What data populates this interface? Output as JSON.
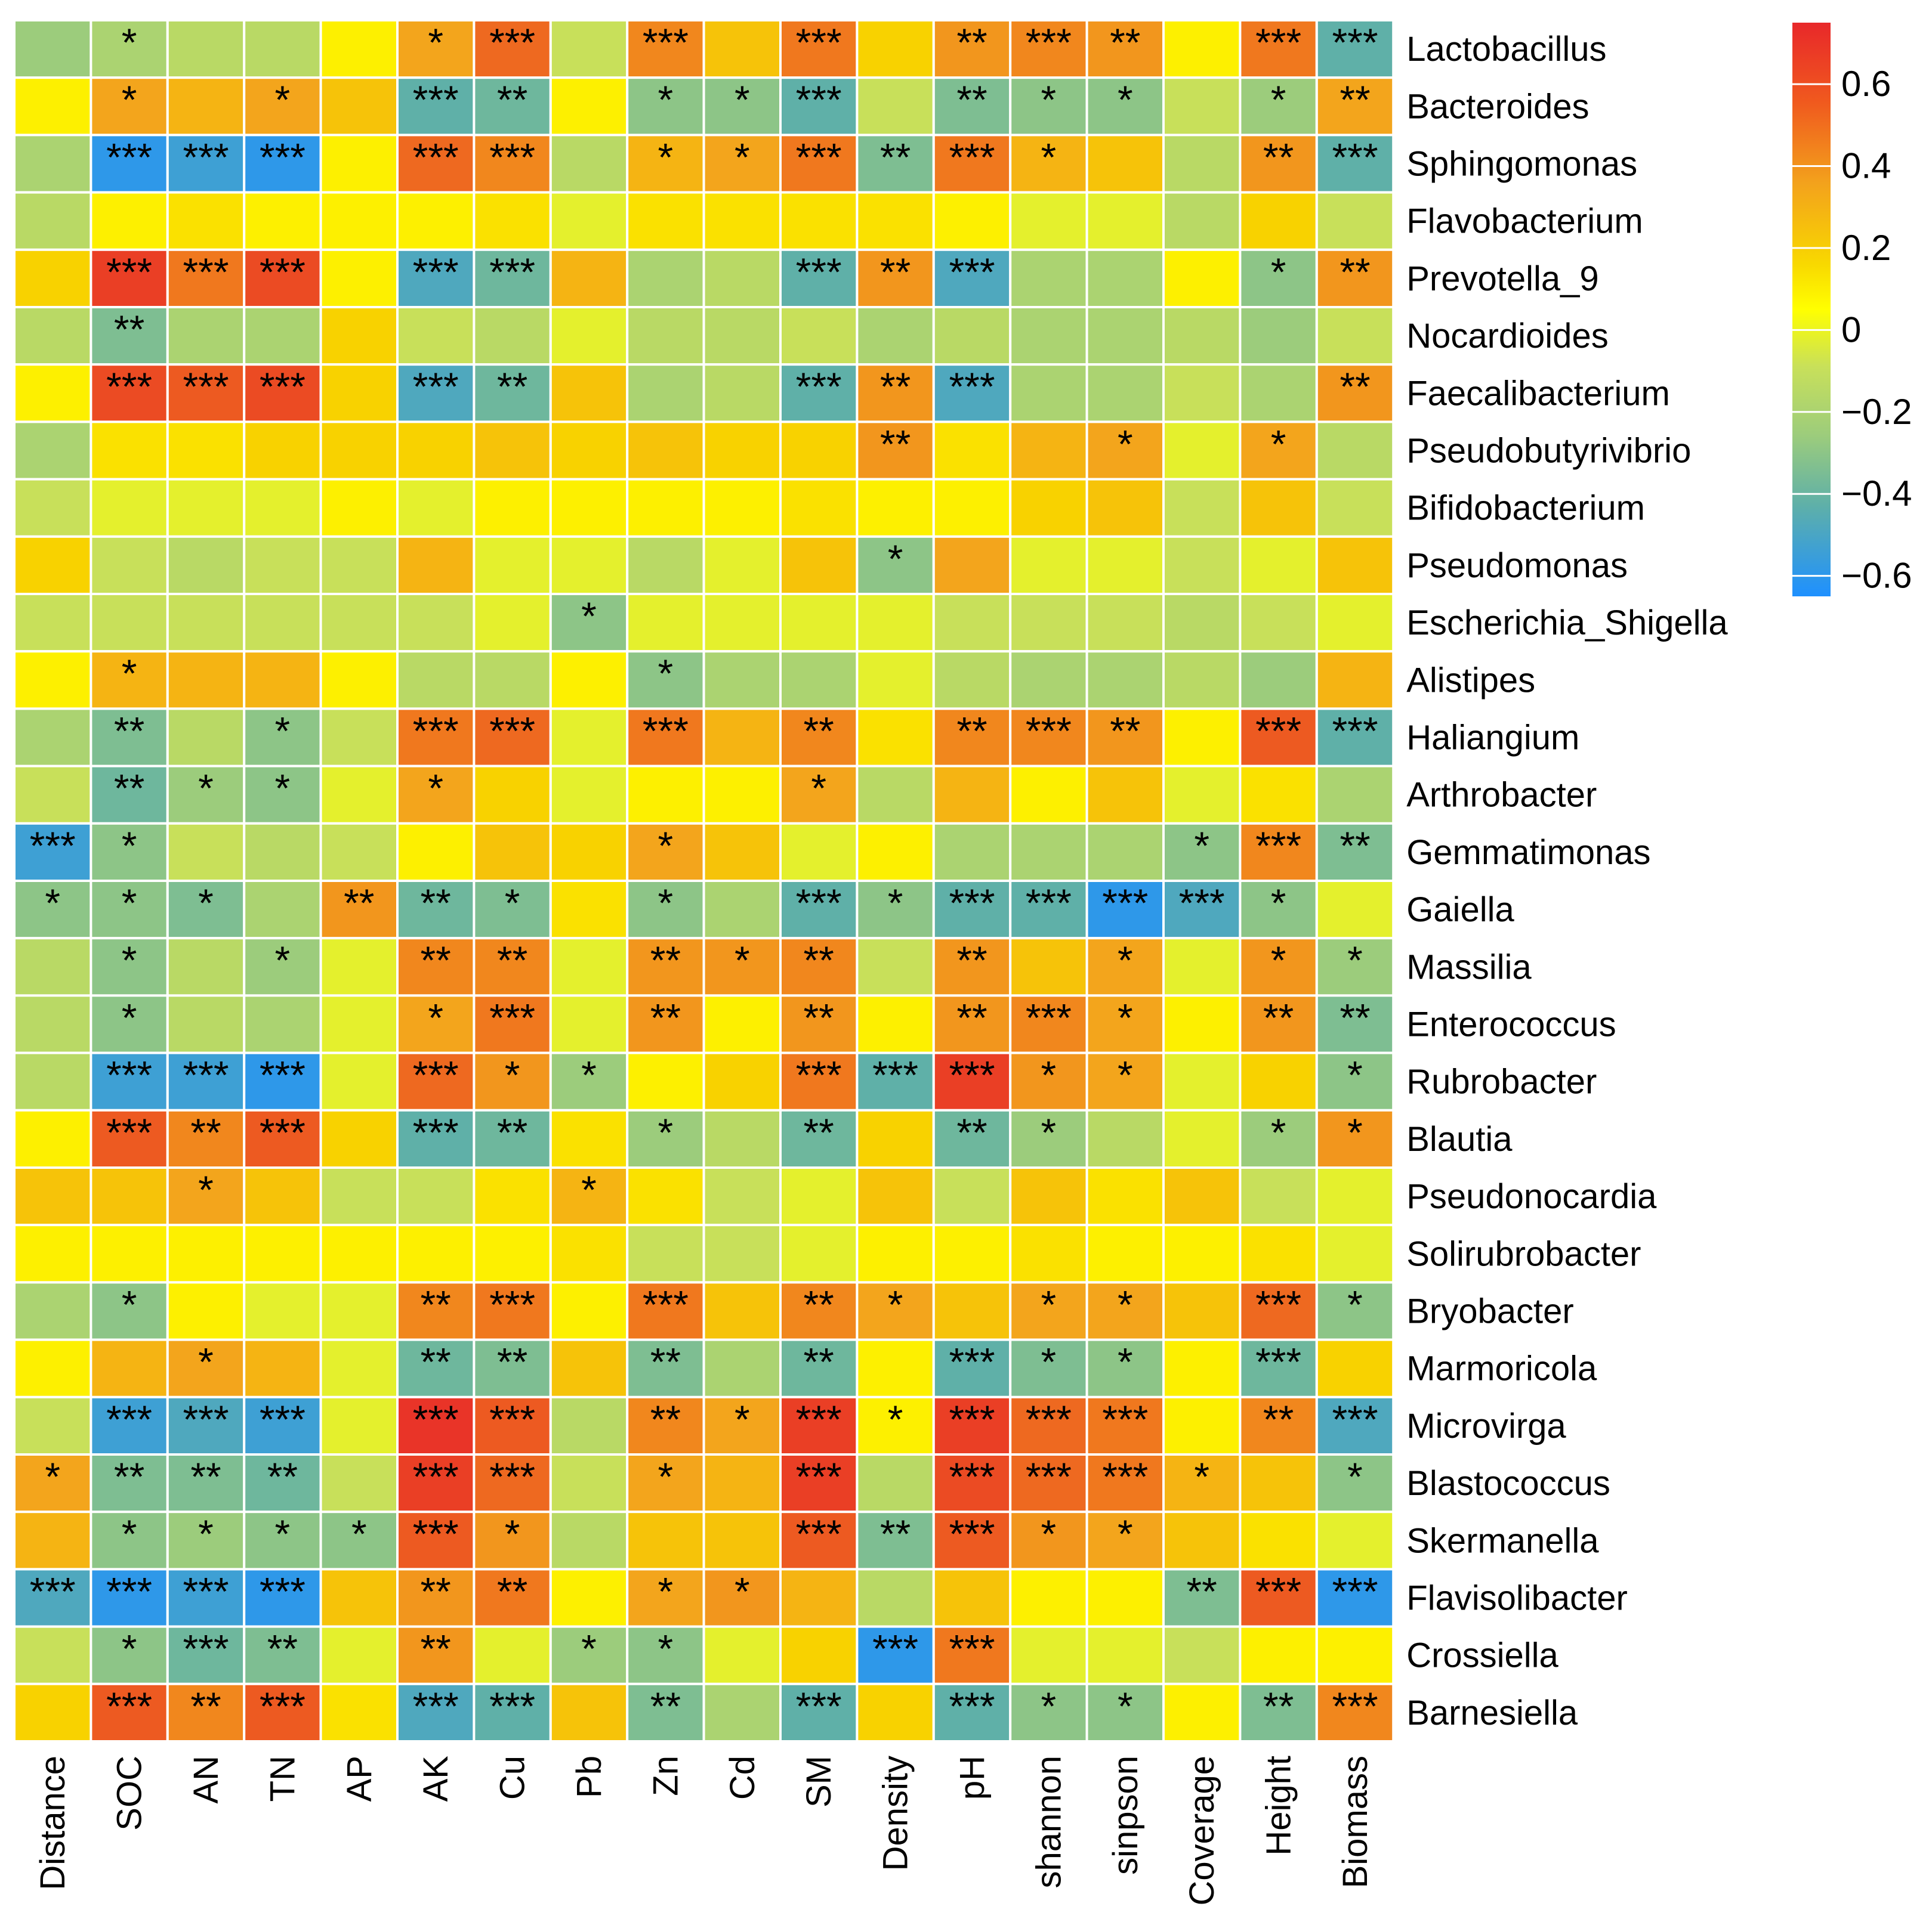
{
  "chart_data": {
    "type": "heatmap",
    "title": "",
    "columns": [
      "Distance",
      "SOC",
      "AN",
      "TN",
      "AP",
      "AK",
      "Cu",
      "Pb",
      "Zn",
      "Cd",
      "SM",
      "Density",
      "pH",
      "shannon",
      "sinpson",
      "Coverage",
      "Height",
      "Biomass"
    ],
    "rows": [
      "Lactobacillus",
      "Bacteroides",
      "Sphingomonas",
      "Flavobacterium",
      "Prevotella_9",
      "Nocardioides",
      "Faecalibacterium",
      "Pseudobutyrivibrio",
      "Bifidobacterium",
      "Pseudomonas",
      "Escherichia_Shigella",
      "Alistipes",
      "Haliangium",
      "Arthrobacter",
      "Gemmatimonas",
      "Gaiella",
      "Massilia",
      "Enterococcus",
      "Rubrobacter",
      "Blautia",
      "Pseudonocardia",
      "Solirubrobacter",
      "Bryobacter",
      "Marmoricola",
      "Microvirga",
      "Blastococcus",
      "Skermanella",
      "Flavisolibacter",
      "Crossiella",
      "Barnesiella"
    ],
    "values": [
      [
        -0.25,
        -0.2,
        -0.15,
        -0.15,
        0.05,
        0.3,
        0.5,
        -0.1,
        0.4,
        0.2,
        0.45,
        0.15,
        0.35,
        0.4,
        0.35,
        0.05,
        0.45,
        -0.45
      ],
      [
        0.05,
        0.3,
        0.25,
        0.3,
        0.2,
        -0.45,
        -0.4,
        0.05,
        -0.3,
        -0.3,
        -0.45,
        -0.1,
        -0.35,
        -0.3,
        -0.3,
        -0.1,
        -0.25,
        0.3
      ],
      [
        -0.2,
        -0.6,
        -0.55,
        -0.6,
        0.05,
        0.5,
        0.4,
        -0.15,
        0.25,
        0.3,
        0.45,
        -0.35,
        0.45,
        0.25,
        0.2,
        -0.15,
        0.35,
        -0.45
      ],
      [
        -0.15,
        0.05,
        0.1,
        0.05,
        0.05,
        0.05,
        0.1,
        -0.05,
        0.1,
        0.1,
        0.1,
        0.1,
        0.05,
        -0.05,
        -0.05,
        -0.15,
        0.15,
        -0.1
      ],
      [
        0.15,
        0.65,
        0.45,
        0.6,
        0.05,
        -0.5,
        -0.4,
        0.25,
        -0.2,
        -0.15,
        -0.45,
        0.35,
        -0.5,
        -0.2,
        -0.2,
        0.05,
        -0.3,
        0.35
      ],
      [
        -0.15,
        -0.35,
        -0.2,
        -0.2,
        0.15,
        -0.1,
        -0.15,
        -0.05,
        -0.15,
        -0.15,
        -0.1,
        -0.2,
        -0.15,
        -0.2,
        -0.2,
        -0.15,
        -0.25,
        -0.1
      ],
      [
        0.05,
        0.6,
        0.55,
        0.6,
        0.15,
        -0.5,
        -0.4,
        0.2,
        -0.2,
        -0.15,
        -0.45,
        0.35,
        -0.5,
        -0.2,
        -0.2,
        -0.1,
        -0.2,
        0.35
      ],
      [
        -0.2,
        0.1,
        0.1,
        0.15,
        0.15,
        0.15,
        0.2,
        0.15,
        0.2,
        0.15,
        0.15,
        0.35,
        0.1,
        0.25,
        0.3,
        -0.05,
        0.3,
        -0.15
      ],
      [
        -0.1,
        -0.05,
        -0.05,
        -0.05,
        0.05,
        -0.05,
        0.05,
        0.05,
        0.05,
        0.05,
        0.1,
        0.05,
        0.05,
        0.15,
        0.2,
        -0.1,
        0.2,
        -0.1
      ],
      [
        0.15,
        -0.1,
        -0.15,
        -0.1,
        -0.1,
        0.25,
        -0.05,
        -0.05,
        -0.15,
        -0.05,
        0.2,
        -0.3,
        0.3,
        -0.05,
        -0.05,
        -0.1,
        -0.05,
        0.2
      ],
      [
        -0.1,
        -0.1,
        -0.1,
        -0.1,
        -0.1,
        -0.1,
        -0.05,
        -0.3,
        -0.05,
        -0.05,
        -0.05,
        -0.05,
        -0.1,
        -0.1,
        -0.1,
        -0.15,
        -0.1,
        -0.05
      ],
      [
        0.05,
        0.25,
        0.25,
        0.25,
        0.05,
        -0.15,
        -0.15,
        0.05,
        -0.3,
        -0.2,
        -0.2,
        -0.05,
        -0.15,
        -0.2,
        -0.2,
        -0.15,
        -0.25,
        0.25
      ],
      [
        -0.2,
        -0.35,
        -0.15,
        -0.3,
        -0.1,
        0.45,
        0.5,
        -0.05,
        0.45,
        0.25,
        0.4,
        0.1,
        0.4,
        0.4,
        0.35,
        0.05,
        0.55,
        -0.45
      ],
      [
        -0.1,
        -0.4,
        -0.25,
        -0.3,
        -0.05,
        0.3,
        0.15,
        -0.05,
        0.05,
        0.05,
        0.3,
        -0.15,
        0.25,
        0.05,
        0.2,
        -0.05,
        0.1,
        -0.2
      ],
      [
        -0.55,
        -0.3,
        -0.1,
        -0.15,
        -0.1,
        0.05,
        0.2,
        0.15,
        0.3,
        0.2,
        -0.05,
        0.05,
        -0.2,
        -0.2,
        -0.2,
        -0.3,
        0.4,
        -0.35
      ],
      [
        -0.3,
        -0.3,
        -0.35,
        -0.2,
        0.35,
        -0.4,
        -0.35,
        0.1,
        -0.3,
        -0.2,
        -0.45,
        -0.3,
        -0.45,
        -0.45,
        -0.6,
        -0.5,
        -0.3,
        -0.05
      ],
      [
        -0.15,
        -0.3,
        -0.15,
        -0.25,
        -0.05,
        0.4,
        0.4,
        -0.05,
        0.35,
        0.35,
        0.4,
        -0.1,
        0.35,
        0.2,
        0.3,
        -0.05,
        0.35,
        -0.25
      ],
      [
        -0.15,
        -0.3,
        -0.15,
        -0.2,
        -0.05,
        0.3,
        0.45,
        -0.05,
        0.35,
        0.05,
        0.35,
        0.05,
        0.35,
        0.4,
        0.3,
        0.05,
        0.35,
        -0.35
      ],
      [
        -0.15,
        -0.55,
        -0.55,
        -0.6,
        -0.05,
        0.5,
        0.35,
        -0.25,
        0.05,
        0.15,
        0.45,
        -0.45,
        0.65,
        0.35,
        0.3,
        -0.05,
        0.15,
        -0.3
      ],
      [
        0.05,
        0.55,
        0.4,
        0.55,
        0.15,
        -0.45,
        -0.4,
        0.1,
        -0.25,
        -0.15,
        -0.4,
        0.15,
        -0.4,
        -0.25,
        -0.15,
        -0.05,
        -0.25,
        0.35
      ],
      [
        0.2,
        0.2,
        0.3,
        0.2,
        -0.1,
        -0.1,
        0.1,
        0.25,
        0.1,
        -0.1,
        -0.05,
        0.2,
        -0.1,
        0.2,
        0.1,
        0.2,
        -0.1,
        -0.05
      ],
      [
        0.05,
        0.05,
        0.05,
        0.05,
        0.05,
        0.05,
        0.05,
        0.1,
        -0.1,
        -0.1,
        -0.05,
        0.05,
        0.05,
        0.1,
        0.05,
        0.05,
        0.1,
        -0.05
      ],
      [
        -0.2,
        -0.3,
        0.05,
        -0.05,
        -0.05,
        0.4,
        0.45,
        0.05,
        0.45,
        0.2,
        0.4,
        0.3,
        0.2,
        0.3,
        0.3,
        0.2,
        0.5,
        -0.3
      ],
      [
        0.05,
        0.25,
        0.3,
        0.25,
        -0.05,
        -0.4,
        -0.35,
        0.2,
        -0.35,
        -0.2,
        -0.4,
        0.05,
        -0.45,
        -0.35,
        -0.3,
        0.05,
        -0.4,
        0.15
      ],
      [
        -0.1,
        -0.55,
        -0.5,
        -0.55,
        -0.05,
        0.7,
        0.55,
        -0.15,
        0.4,
        0.3,
        0.65,
        0.05,
        0.65,
        0.5,
        0.45,
        0.05,
        0.4,
        -0.5
      ],
      [
        0.3,
        -0.35,
        -0.35,
        -0.4,
        -0.1,
        0.65,
        0.5,
        -0.1,
        0.3,
        0.25,
        0.65,
        -0.15,
        0.6,
        0.5,
        0.45,
        0.25,
        0.2,
        -0.3
      ],
      [
        0.25,
        -0.3,
        -0.25,
        -0.3,
        -0.3,
        0.55,
        0.35,
        -0.15,
        0.2,
        0.2,
        0.55,
        -0.35,
        0.55,
        0.35,
        0.3,
        0.2,
        0.1,
        -0.05
      ],
      [
        -0.5,
        -0.6,
        -0.55,
        -0.6,
        0.2,
        0.35,
        0.45,
        0.05,
        0.3,
        0.35,
        0.25,
        -0.15,
        0.2,
        0.05,
        0.05,
        -0.35,
        0.55,
        -0.6
      ],
      [
        -0.1,
        -0.3,
        -0.4,
        -0.35,
        -0.05,
        0.35,
        -0.05,
        -0.25,
        -0.3,
        -0.05,
        0.15,
        -0.6,
        0.45,
        -0.05,
        -0.05,
        -0.1,
        0.05,
        0.05
      ],
      [
        0.15,
        0.55,
        0.4,
        0.55,
        0.1,
        -0.5,
        -0.45,
        0.2,
        -0.35,
        -0.2,
        -0.45,
        0.15,
        -0.45,
        -0.3,
        -0.3,
        0.05,
        -0.35,
        0.4
      ]
    ],
    "significance": [
      [
        "",
        "*",
        "",
        "",
        "",
        "*",
        "***",
        "",
        "***",
        "",
        "***",
        "",
        "**",
        "***",
        "**",
        "",
        "***",
        "***"
      ],
      [
        "",
        "*",
        "",
        "*",
        "",
        "***",
        "**",
        "",
        "*",
        "*",
        "***",
        "",
        "**",
        "*",
        "*",
        "",
        "*",
        "**"
      ],
      [
        "",
        "***",
        "***",
        "***",
        "",
        "***",
        "***",
        "",
        "*",
        "*",
        "***",
        "**",
        "***",
        "*",
        "",
        "",
        "**",
        "***"
      ],
      [
        "",
        "",
        "",
        "",
        "",
        "",
        "",
        "",
        "",
        "",
        "",
        "",
        "",
        "",
        "",
        "",
        "",
        ""
      ],
      [
        "",
        "***",
        "***",
        "***",
        "",
        "***",
        "***",
        "",
        "",
        "",
        "***",
        "**",
        "***",
        "",
        "",
        "",
        "*",
        "**"
      ],
      [
        "",
        "**",
        "",
        "",
        "",
        "",
        "",
        "",
        "",
        "",
        "",
        "",
        "",
        "",
        "",
        "",
        "",
        ""
      ],
      [
        "",
        "***",
        "***",
        "***",
        "",
        "***",
        "**",
        "",
        "",
        "",
        "***",
        "**",
        "***",
        "",
        "",
        "",
        "",
        "**"
      ],
      [
        "",
        "",
        "",
        "",
        "",
        "",
        "",
        "",
        "",
        "",
        "",
        "**",
        "",
        "",
        "*",
        "",
        "*",
        ""
      ],
      [
        "",
        "",
        "",
        "",
        "",
        "",
        "",
        "",
        "",
        "",
        "",
        "",
        "",
        "",
        "",
        "",
        "",
        ""
      ],
      [
        "",
        "",
        "",
        "",
        "",
        "",
        "",
        "",
        "",
        "",
        "",
        "*",
        "",
        "",
        "",
        "",
        "",
        ""
      ],
      [
        "",
        "",
        "",
        "",
        "",
        "",
        "",
        "*",
        "",
        "",
        "",
        "",
        "",
        "",
        "",
        "",
        "",
        ""
      ],
      [
        "",
        "*",
        "",
        "",
        "",
        "",
        "",
        "",
        "*",
        "",
        "",
        "",
        "",
        "",
        "",
        "",
        "",
        ""
      ],
      [
        "",
        "**",
        "",
        "*",
        "",
        "***",
        "***",
        "",
        "***",
        "",
        "**",
        "",
        "**",
        "***",
        "**",
        "",
        "***",
        "***"
      ],
      [
        "",
        "**",
        "*",
        "*",
        "",
        "*",
        "",
        "",
        "",
        "",
        "*",
        "",
        "",
        "",
        "",
        "",
        "",
        ""
      ],
      [
        "***",
        "*",
        "",
        "",
        "",
        "",
        "",
        "",
        "*",
        "",
        "",
        "",
        "",
        "",
        "",
        "*",
        "***",
        "**"
      ],
      [
        "*",
        "*",
        "*",
        "",
        "**",
        "**",
        "*",
        "",
        "*",
        "",
        "***",
        "*",
        "***",
        "***",
        "***",
        "***",
        "*",
        ""
      ],
      [
        "",
        "*",
        "",
        "*",
        "",
        "**",
        "**",
        "",
        "**",
        "*",
        "**",
        "",
        "**",
        "",
        "*",
        "",
        "*",
        "*"
      ],
      [
        "",
        "*",
        "",
        "",
        "",
        "*",
        "***",
        "",
        "**",
        "",
        "**",
        "",
        "**",
        "***",
        "*",
        "",
        "**",
        "**"
      ],
      [
        "",
        "***",
        "***",
        "***",
        "",
        "***",
        "*",
        "*",
        "",
        "",
        "***",
        "***",
        "***",
        "*",
        "*",
        "",
        "",
        "*"
      ],
      [
        "",
        "***",
        "**",
        "***",
        "",
        "***",
        "**",
        "",
        "*",
        "",
        "**",
        "",
        "**",
        "*",
        "",
        "",
        "*",
        "*"
      ],
      [
        "",
        "",
        "*",
        "",
        "",
        "",
        "",
        "*",
        "",
        "",
        "",
        "",
        "",
        "",
        "",
        "",
        "",
        ""
      ],
      [
        "",
        "",
        "",
        "",
        "",
        "",
        "",
        "",
        "",
        "",
        "",
        "",
        "",
        "",
        "",
        "",
        "",
        ""
      ],
      [
        "",
        "*",
        "",
        "",
        "",
        "**",
        "***",
        "",
        "***",
        "",
        "**",
        "*",
        "",
        "*",
        "*",
        "",
        "***",
        "*"
      ],
      [
        "",
        "",
        "*",
        "",
        "",
        "**",
        "**",
        "",
        "**",
        "",
        "**",
        "",
        "***",
        "*",
        "*",
        "",
        "***",
        ""
      ],
      [
        "",
        "***",
        "***",
        "***",
        "",
        "***",
        "***",
        "",
        "**",
        "*",
        "***",
        "*",
        "***",
        "***",
        "***",
        "",
        "**",
        "***"
      ],
      [
        "*",
        "**",
        "**",
        "**",
        "",
        "***",
        "***",
        "",
        "*",
        "",
        "***",
        "",
        "***",
        "***",
        "***",
        "*",
        "",
        "*"
      ],
      [
        "",
        "*",
        "*",
        "*",
        "*",
        "***",
        "*",
        "",
        "",
        "",
        "***",
        "**",
        "***",
        "*",
        "*",
        "",
        "",
        ""
      ],
      [
        "***",
        "***",
        "***",
        "***",
        "",
        "**",
        "**",
        "",
        "*",
        "*",
        "",
        "",
        "",
        "",
        "",
        "**",
        "***",
        "***"
      ],
      [
        "",
        "*",
        "***",
        "**",
        "",
        "**",
        "",
        "*",
        "*",
        "",
        "",
        "***",
        "***",
        "",
        "",
        "",
        "",
        ""
      ],
      [
        "",
        "***",
        "**",
        "***",
        "",
        "***",
        "***",
        "",
        "**",
        "",
        "***",
        "",
        "***",
        "*",
        "*",
        "",
        "**",
        "***"
      ]
    ],
    "colorbar": {
      "ticks": [
        0.6,
        0.4,
        0.2,
        0,
        -0.2,
        -0.4,
        -0.6
      ],
      "tick_labels": [
        "0.6",
        "0.4",
        "0.2",
        "0",
        "−0.2",
        "−0.4",
        "−0.6"
      ],
      "range": [
        -0.65,
        0.75
      ]
    },
    "colors": {
      "low": "#1e90ff",
      "mid_low": "#5fb0a8",
      "mid": "#9ccc7c",
      "mid_high": "#c8e05a",
      "zero": "#ffff00",
      "high_mid": "#f7c300",
      "high": "#f08c1e",
      "max": "#e8282a"
    }
  }
}
